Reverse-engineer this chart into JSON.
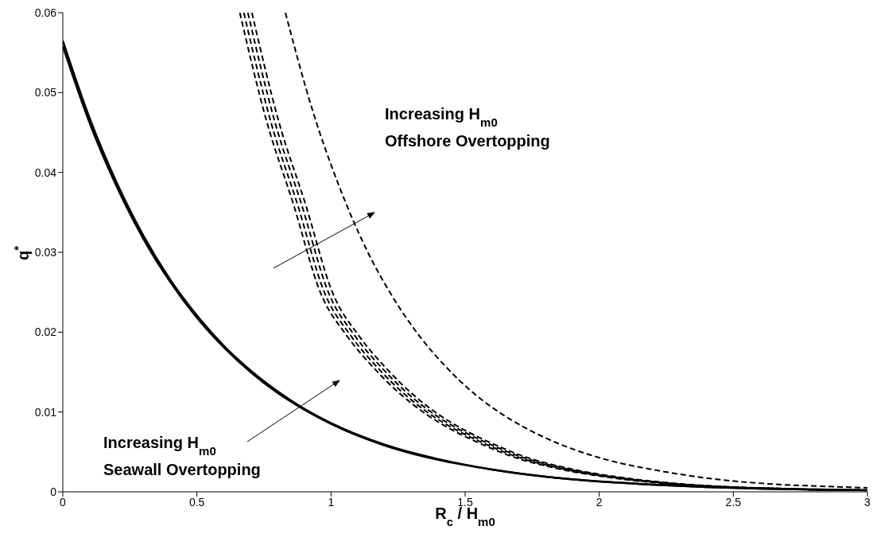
{
  "chart_data": {
    "type": "line",
    "xlabel": "R$_{c}$ / H$_{m0}$",
    "ylabel": "q$^{*}$",
    "xlim": [
      0,
      3
    ],
    "ylim": [
      0,
      0.06
    ],
    "xticks": [
      0,
      0.5,
      1,
      1.5,
      2,
      2.5,
      3
    ],
    "yticks": [
      0,
      0.01,
      0.02,
      0.03,
      0.04,
      0.05,
      0.06
    ],
    "annotations": [
      "Increasing H$_{m0}$\nOffshore Overtopping",
      "Increasing H$_{m0}$\nSeawall Overtopping"
    ],
    "series": [
      {
        "color": "#000000",
        "line_style": "solid",
        "x": [
          0,
          0.1,
          0.2,
          0.3,
          0.4,
          0.5,
          0.6,
          0.7,
          0.8,
          0.9,
          1.0,
          1.2,
          1.4,
          1.6,
          1.8,
          2.0,
          2.2,
          2.4,
          2.6,
          2.8,
          3.0
        ],
        "values": [
          0.0565,
          0.0468,
          0.0388,
          0.0321,
          0.0266,
          0.0221,
          0.0183,
          0.0152,
          0.0126,
          0.0104,
          0.0086,
          0.0059,
          0.0041,
          0.0028,
          0.0019,
          0.0013,
          0.0009,
          0.0006,
          0.0004,
          0.0003,
          0.0002
        ]
      },
      {
        "color": "#000000",
        "line_style": "solid",
        "x": [
          0,
          0.1,
          0.2,
          0.3,
          0.4,
          0.5,
          0.6,
          0.7,
          0.8,
          0.9,
          1.0,
          1.2,
          1.4,
          1.6,
          1.8,
          2.0,
          2.2,
          2.4,
          2.6,
          2.8,
          3.0
        ],
        "values": [
          0.0558,
          0.0462,
          0.0383,
          0.0317,
          0.0263,
          0.0218,
          0.0181,
          0.015,
          0.0124,
          0.0103,
          0.0085,
          0.0058,
          0.004,
          0.0028,
          0.0019,
          0.0013,
          0.0009,
          0.0006,
          0.0004,
          0.0003,
          0.0002
        ]
      },
      {
        "color": "#000000",
        "line_style": "dashed",
        "x": [
          0.66,
          0.76,
          0.86,
          0.96,
          1.06,
          1.16,
          1.26,
          1.36,
          1.46,
          1.56,
          1.66,
          1.86,
          2.06,
          2.26,
          2.46,
          2.66,
          2.86,
          3.0
        ],
        "values": [
          0.06,
          0.0464,
          0.036,
          0.025,
          0.0195,
          0.0155,
          0.0122,
          0.0096,
          0.0076,
          0.006,
          0.0046,
          0.0028,
          0.0017,
          0.001,
          0.0006,
          0.0004,
          0.0002,
          0.0002
        ]
      },
      {
        "color": "#000000",
        "line_style": "dashed",
        "x": [
          0.675,
          0.775,
          0.875,
          0.975,
          1.075,
          1.175,
          1.275,
          1.375,
          1.475,
          1.575,
          1.675,
          1.875,
          2.075,
          2.275,
          2.475,
          2.675,
          2.875,
          3.0
        ],
        "values": [
          0.06,
          0.0464,
          0.036,
          0.025,
          0.0195,
          0.0155,
          0.0122,
          0.0096,
          0.0076,
          0.006,
          0.0046,
          0.0028,
          0.0017,
          0.001,
          0.0006,
          0.0004,
          0.0002,
          0.0002
        ]
      },
      {
        "color": "#000000",
        "line_style": "dashed",
        "x": [
          0.69,
          0.79,
          0.89,
          0.99,
          1.09,
          1.19,
          1.29,
          1.39,
          1.49,
          1.59,
          1.69,
          1.89,
          2.09,
          2.29,
          2.49,
          2.69,
          2.89,
          3.0
        ],
        "values": [
          0.06,
          0.0464,
          0.036,
          0.025,
          0.0195,
          0.0155,
          0.0122,
          0.0096,
          0.0076,
          0.006,
          0.0046,
          0.0028,
          0.0017,
          0.001,
          0.0006,
          0.0004,
          0.0002,
          0.0002
        ]
      },
      {
        "color": "#000000",
        "line_style": "dashed",
        "x": [
          0.705,
          0.805,
          0.905,
          1.005,
          1.105,
          1.205,
          1.305,
          1.405,
          1.505,
          1.605,
          1.705,
          1.905,
          2.105,
          2.305,
          2.505,
          2.705,
          2.905,
          3.0
        ],
        "values": [
          0.06,
          0.0464,
          0.036,
          0.025,
          0.0195,
          0.0155,
          0.0122,
          0.0096,
          0.0076,
          0.006,
          0.0046,
          0.0028,
          0.0017,
          0.001,
          0.0006,
          0.0004,
          0.0002,
          0.0002
        ]
      },
      {
        "color": "#000000",
        "line_style": "dashed",
        "x": [
          0.83,
          0.93,
          1.03,
          1.13,
          1.23,
          1.33,
          1.43,
          1.53,
          1.63,
          1.73,
          1.83,
          2.03,
          2.23,
          2.43,
          2.63,
          2.83,
          3.0
        ],
        "values": [
          0.06,
          0.0479,
          0.0383,
          0.0305,
          0.0244,
          0.0195,
          0.0156,
          0.0124,
          0.0099,
          0.0079,
          0.0063,
          0.004,
          0.0026,
          0.0016,
          0.001,
          0.0007,
          0.0005
        ]
      }
    ]
  }
}
